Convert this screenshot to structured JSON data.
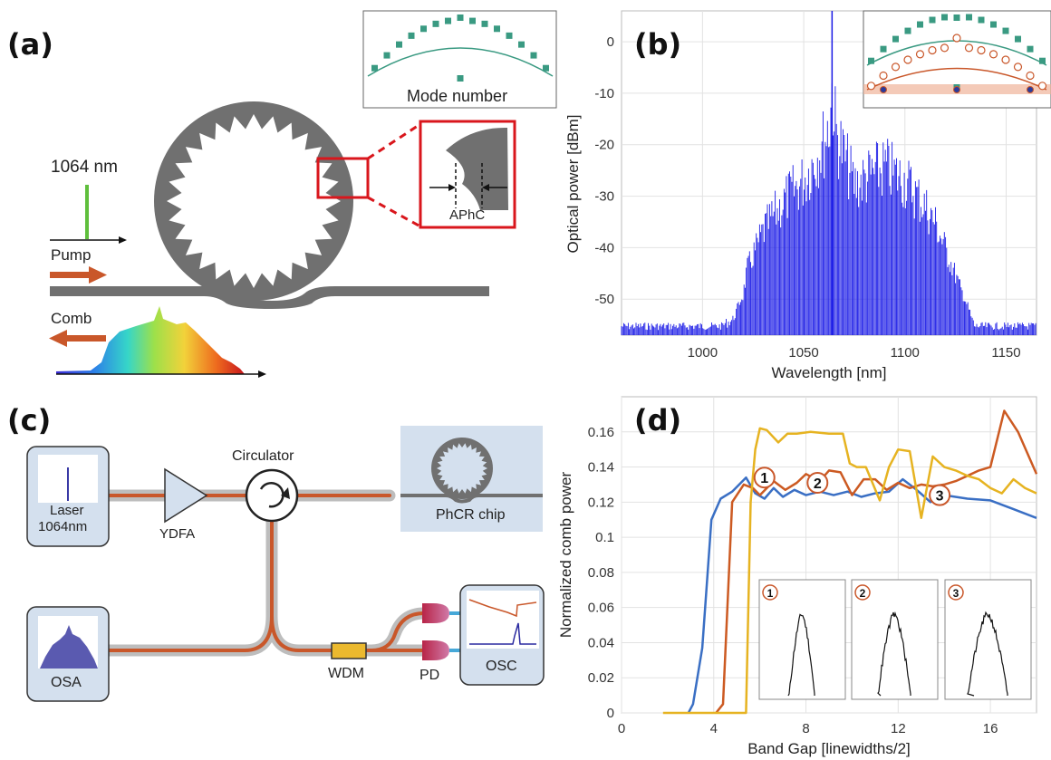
{
  "panels": {
    "a": {
      "label": "(a)",
      "wavelength_label": "1064 nm",
      "pump_label": "Pump",
      "comb_label": "Comb",
      "zoom_label": "APhC",
      "inset_xlabel": "Mode number"
    },
    "b": {
      "label": "(b)"
    },
    "c": {
      "label": "(c)",
      "laser_label_1": "Laser",
      "laser_label_2": "1064nm",
      "ydfa_label": "YDFA",
      "circulator_label": "Circulator",
      "chip_label": "PhCR chip",
      "osa_label": "OSA",
      "wdm_label": "WDM",
      "pd_label": "PD",
      "osc_label": "OSC"
    },
    "d": {
      "label": "(d)",
      "markers": [
        "1",
        "2",
        "3"
      ]
    }
  },
  "chart_data": [
    {
      "id": "b",
      "type": "bar",
      "xlabel": "Wavelength [nm]",
      "ylabel": "Optical power [dBm]",
      "xlim": [
        960,
        1165
      ],
      "ylim": [
        -57,
        6
      ],
      "xticks": [
        1000,
        1050,
        1100,
        1150
      ],
      "yticks": [
        0,
        -10,
        -20,
        -30,
        -40,
        -50
      ],
      "grid": true,
      "series_color": "#1a1ae6",
      "envelope": {
        "x": [
          960,
          1000,
          1015,
          1020,
          1022,
          1030,
          1040,
          1050,
          1060,
          1063,
          1064,
          1066,
          1075,
          1090,
          1100,
          1110,
          1115,
          1120,
          1128,
          1135,
          1165
        ],
        "y": [
          -55,
          -56,
          -53,
          -48,
          -42,
          -33,
          -26,
          -21,
          -12,
          -7,
          1,
          -10,
          -22,
          -18,
          -21,
          -27,
          -31,
          -37,
          -47,
          -55,
          -56
        ]
      },
      "pump": {
        "x": 1064,
        "y": 6
      },
      "noise_floor": -55
    },
    {
      "id": "d",
      "type": "line",
      "xlabel": "Band Gap [linewidths/2]",
      "ylabel": "Normalized comb power",
      "xlim": [
        0,
        18
      ],
      "ylim": [
        0,
        0.18
      ],
      "xticks": [
        0,
        4,
        8,
        12,
        16
      ],
      "yticks": [
        0,
        0.02,
        0.04,
        0.06,
        0.08,
        0.1,
        0.12,
        0.14,
        0.16
      ],
      "grid": true,
      "series": [
        {
          "color": "#3a6fc4",
          "x": [
            2.9,
            3.1,
            3.5,
            3.9,
            4.3,
            4.8,
            5.4,
            5.8,
            6.2,
            6.6,
            7.0,
            7.5,
            8.0,
            8.6,
            9.2,
            9.8,
            10.4,
            11.0,
            11.6,
            12.2,
            12.8,
            13.4,
            14.0,
            15.0,
            16.0,
            17.0,
            18.0
          ],
          "y": [
            0,
            0.005,
            0.037,
            0.11,
            0.122,
            0.126,
            0.134,
            0.125,
            0.122,
            0.128,
            0.123,
            0.127,
            0.124,
            0.126,
            0.124,
            0.126,
            0.123,
            0.125,
            0.126,
            0.133,
            0.127,
            0.12,
            0.124,
            0.122,
            0.121,
            0.116,
            0.111
          ]
        },
        {
          "color": "#cc5a22",
          "x": [
            4.1,
            4.4,
            4.8,
            5.3,
            5.7,
            6.0,
            6.6,
            7.1,
            7.6,
            8.0,
            8.6,
            9.0,
            9.5,
            10.0,
            10.5,
            11.0,
            11.5,
            12.0,
            12.5,
            13.0,
            13.5,
            14.0,
            14.5,
            15.0,
            15.5,
            16.0,
            16.6,
            17.2,
            18.0
          ],
          "y": [
            0,
            0.005,
            0.12,
            0.13,
            0.128,
            0.124,
            0.132,
            0.127,
            0.131,
            0.136,
            0.132,
            0.138,
            0.137,
            0.124,
            0.133,
            0.133,
            0.127,
            0.131,
            0.128,
            0.13,
            0.129,
            0.13,
            0.132,
            0.135,
            0.138,
            0.14,
            0.172,
            0.16,
            0.136
          ]
        },
        {
          "color": "#e6b321",
          "x": [
            1.8,
            5.4,
            5.6,
            5.8,
            6.0,
            6.3,
            6.8,
            7.2,
            7.6,
            8.2,
            9.0,
            9.6,
            9.9,
            10.2,
            10.6,
            11.2,
            11.6,
            12.0,
            12.5,
            13.0,
            13.5,
            14.0,
            14.5,
            15.0,
            15.5,
            16.0,
            16.5,
            17.0,
            17.5,
            18.0
          ],
          "y": [
            0,
            0,
            0.12,
            0.15,
            0.162,
            0.161,
            0.154,
            0.159,
            0.159,
            0.16,
            0.159,
            0.159,
            0.142,
            0.14,
            0.14,
            0.121,
            0.14,
            0.15,
            0.149,
            0.111,
            0.146,
            0.14,
            0.138,
            0.135,
            0.133,
            0.128,
            0.125,
            0.133,
            0.128,
            0.125
          ]
        }
      ]
    }
  ]
}
